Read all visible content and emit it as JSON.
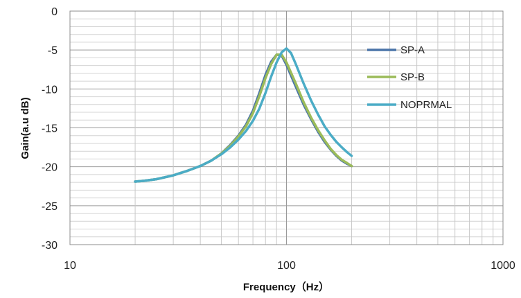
{
  "chart_data": {
    "type": "line",
    "xlabel": "Frequency（Hz）",
    "ylabel": "Gain(a.u dB)",
    "xscale": "log",
    "xlim": [
      10,
      1000
    ],
    "ylim": [
      -30,
      0
    ],
    "x_ticks": [
      "10",
      "100",
      "1000"
    ],
    "y_ticks": [
      "0",
      "-5",
      "-10",
      "-15",
      "-20",
      "-25",
      "-30"
    ],
    "grid": true,
    "legend_position": "right",
    "series": [
      {
        "name": "SP-A",
        "color": "#4a74a8",
        "x": [
          20,
          22,
          25,
          30,
          35,
          40,
          45,
          50,
          55,
          60,
          65,
          70,
          75,
          80,
          85,
          90,
          95,
          100,
          110,
          120,
          130,
          140,
          150,
          160,
          170,
          180,
          190,
          200
        ],
        "y": [
          -21.9,
          -21.8,
          -21.6,
          -21.1,
          -20.5,
          -19.9,
          -19.2,
          -18.3,
          -17.2,
          -16.0,
          -14.6,
          -12.8,
          -10.5,
          -8.2,
          -6.5,
          -5.6,
          -5.7,
          -6.9,
          -9.6,
          -12.0,
          -13.9,
          -15.5,
          -16.8,
          -17.8,
          -18.6,
          -19.2,
          -19.6,
          -19.9
        ]
      },
      {
        "name": "SP-B",
        "color": "#9bbb59",
        "x": [
          20,
          22,
          25,
          30,
          35,
          40,
          45,
          50,
          55,
          60,
          65,
          70,
          75,
          80,
          85,
          90,
          95,
          100,
          110,
          120,
          130,
          140,
          150,
          160,
          170,
          180,
          190,
          200
        ],
        "y": [
          -21.9,
          -21.8,
          -21.6,
          -21.1,
          -20.5,
          -19.9,
          -19.2,
          -18.3,
          -17.3,
          -16.1,
          -14.8,
          -13.1,
          -10.9,
          -8.6,
          -6.8,
          -5.6,
          -5.6,
          -6.6,
          -9.2,
          -11.7,
          -13.7,
          -15.3,
          -16.6,
          -17.7,
          -18.5,
          -19.1,
          -19.5,
          -19.9
        ]
      },
      {
        "name": "NOPRMAL",
        "color": "#4bacc6",
        "x": [
          20,
          22,
          25,
          30,
          35,
          40,
          45,
          50,
          55,
          60,
          65,
          70,
          75,
          80,
          85,
          90,
          95,
          100,
          105,
          110,
          120,
          130,
          140,
          150,
          160,
          170,
          180,
          190,
          200
        ],
        "y": [
          -21.9,
          -21.8,
          -21.6,
          -21.1,
          -20.5,
          -19.9,
          -19.2,
          -18.4,
          -17.5,
          -16.5,
          -15.4,
          -14.1,
          -12.5,
          -10.5,
          -8.4,
          -6.6,
          -5.3,
          -4.8,
          -5.4,
          -6.7,
          -9.3,
          -11.5,
          -13.3,
          -14.8,
          -15.9,
          -16.8,
          -17.5,
          -18.1,
          -18.6
        ]
      }
    ]
  }
}
